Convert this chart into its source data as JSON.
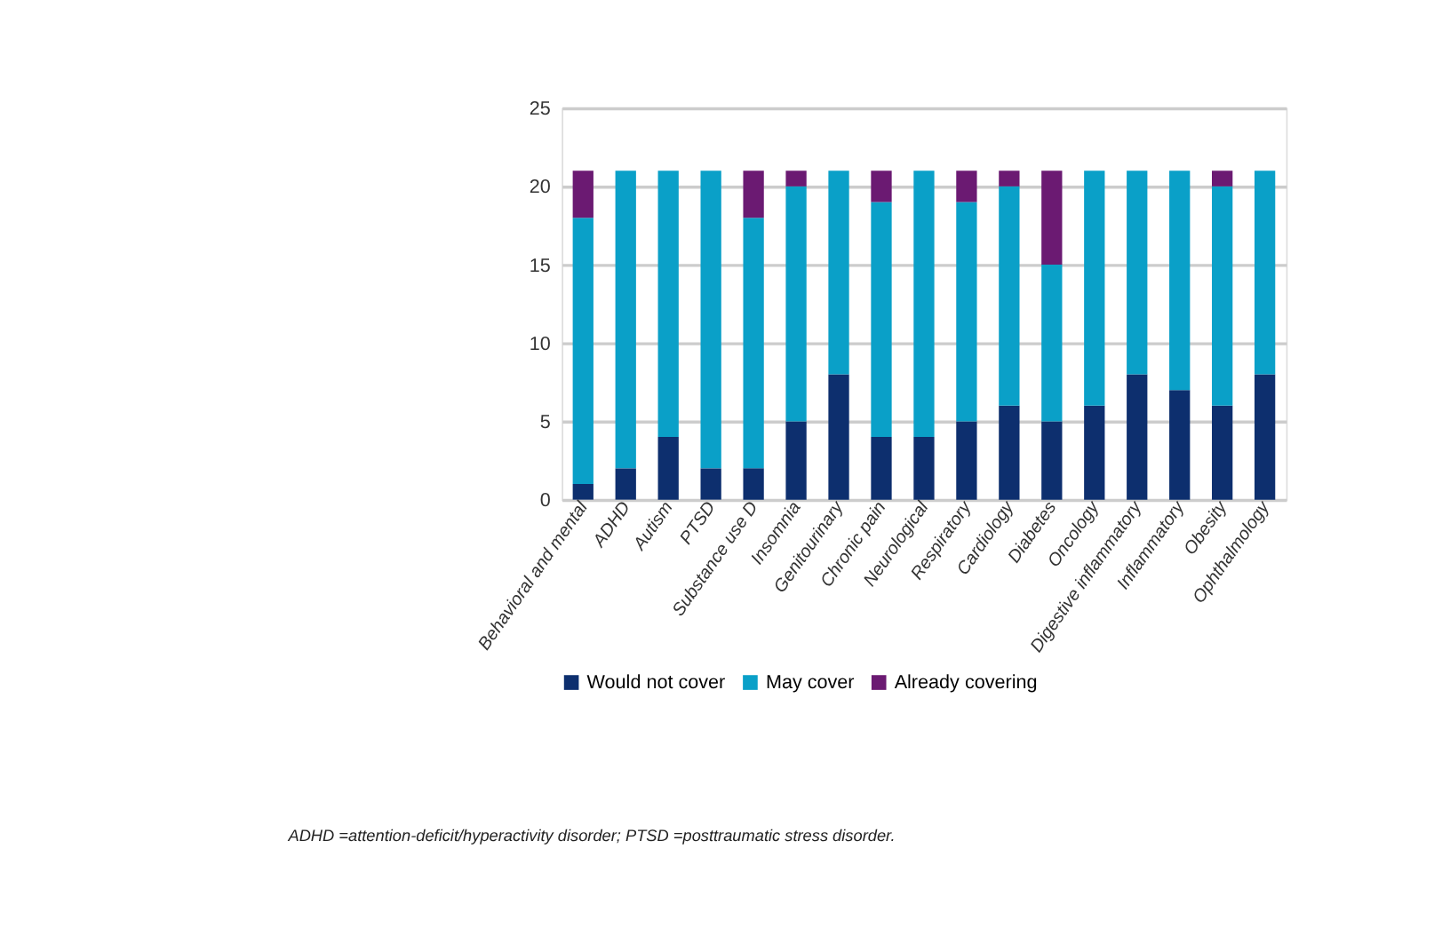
{
  "chart_data": {
    "type": "bar",
    "stacked": true,
    "categories": [
      "Behavioral and mental",
      "ADHD",
      "Autism",
      "PTSD",
      "Substance use D",
      "Insomnia",
      "Genitourinary",
      "Chronic pain",
      "Neurological",
      "Respiratory",
      "Cardiology",
      "Diabetes",
      "Oncology",
      "Digestive inflammatory",
      "Inflammatory",
      "Obesity",
      "Ophthalmology"
    ],
    "series": [
      {
        "name": "Would not cover",
        "color": "#0d2f6e",
        "values": [
          1,
          2,
          4,
          2,
          2,
          5,
          8,
          4,
          4,
          5,
          6,
          5,
          6,
          8,
          7,
          6,
          8
        ]
      },
      {
        "name": "May cover",
        "color": "#0aa0c8",
        "values": [
          17,
          19,
          17,
          19,
          16,
          15,
          13,
          15,
          17,
          14,
          14,
          10,
          15,
          13,
          14,
          14,
          13
        ]
      },
      {
        "name": "Already covering",
        "color": "#6b1a72",
        "values": [
          3,
          0,
          0,
          0,
          3,
          1,
          0,
          2,
          0,
          2,
          1,
          6,
          0,
          0,
          0,
          1,
          0
        ]
      }
    ],
    "ylim": [
      0,
      25
    ],
    "yticks": [
      0,
      5,
      10,
      15,
      20,
      25
    ],
    "grid": "y",
    "legend": "bottom",
    "annotations": [
      "ADHD =attention-deficit/hyperactivity disorder; PTSD =posttraumatic stress disorder."
    ]
  }
}
